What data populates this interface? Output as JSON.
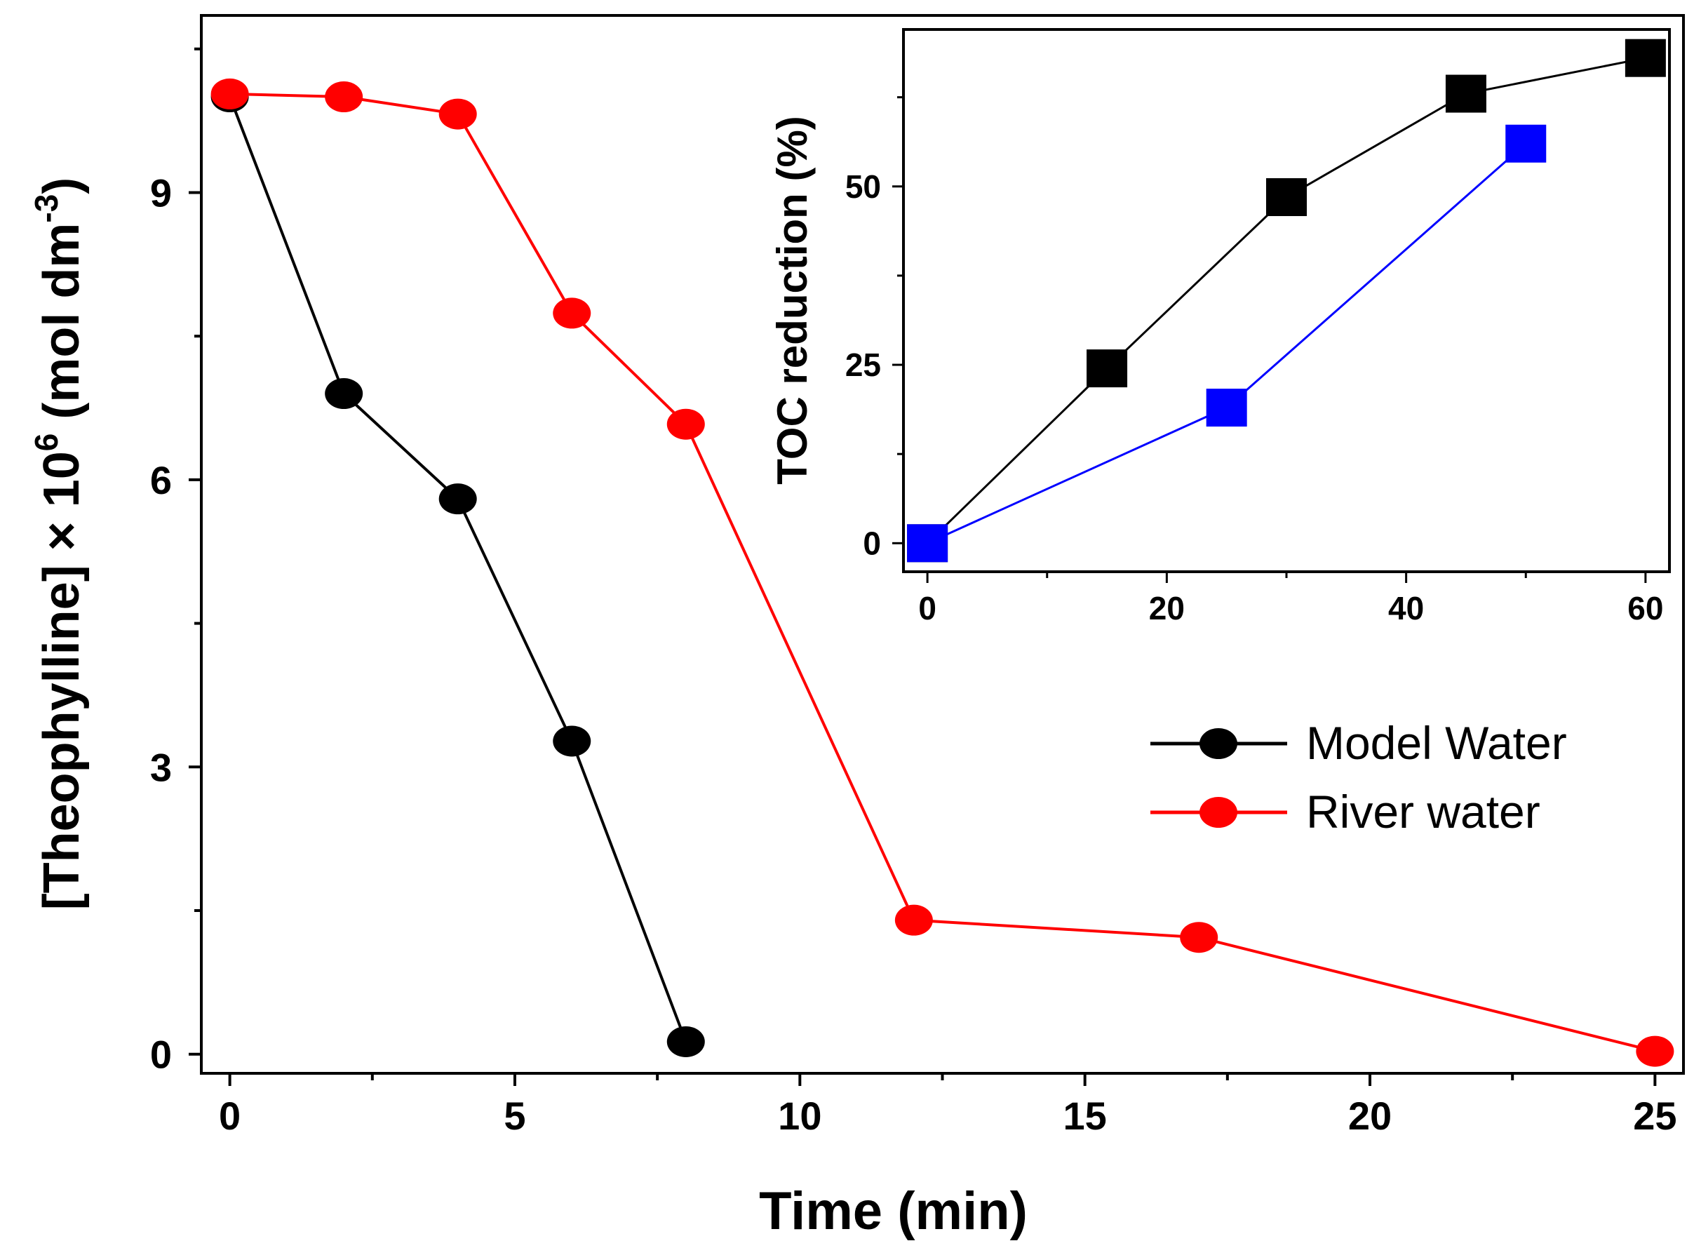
{
  "chart_data": [
    {
      "type": "line",
      "xlabel": "Time (min)",
      "ylabel": {
        "prefix": "[Theophylline] × 10",
        "superscript": "6",
        "unit_start": " (mol dm",
        "unit_superscript": "-3",
        "unit_end": ")"
      },
      "xlim": [
        -0.5,
        25.5
      ],
      "ylim": [
        -0.2,
        10.85
      ],
      "xticks": [
        0,
        5,
        10,
        15,
        20,
        25
      ],
      "yticks": [
        0,
        3,
        6,
        9
      ],
      "xtick_labels": [
        "0",
        "5",
        "10",
        "15",
        "20",
        "25"
      ],
      "ytick_labels": [
        "0",
        "3",
        "6",
        "9"
      ],
      "grid": false,
      "legend_position": "right-middle",
      "series": [
        {
          "name": "Model Water",
          "color": "#000000",
          "marker": "circle",
          "x": [
            0,
            2,
            4,
            6,
            8
          ],
          "y": [
            10.0,
            6.9,
            5.8,
            3.27,
            0.13
          ]
        },
        {
          "name": "River water",
          "color": "#ff0000",
          "marker": "circle",
          "x": [
            0,
            2,
            4,
            6,
            8,
            12,
            17,
            25
          ],
          "y": [
            10.03,
            10.0,
            9.82,
            7.74,
            6.58,
            1.4,
            1.22,
            0.03
          ]
        }
      ]
    },
    {
      "type": "line",
      "inset": true,
      "xlabel": "",
      "ylabel": "TOC reduction (%)",
      "xlim": [
        -2,
        62
      ],
      "ylim": [
        -4,
        72
      ],
      "xticks": [
        0,
        20,
        40,
        60
      ],
      "yticks": [
        0,
        25,
        50
      ],
      "xtick_labels": [
        "0",
        "20",
        "40",
        "60"
      ],
      "ytick_labels": [
        "0",
        "25",
        "50"
      ],
      "grid": false,
      "series": [
        {
          "color": "#000000",
          "marker": "square",
          "x": [
            0,
            15,
            30,
            45,
            60
          ],
          "y": [
            0,
            24.5,
            48.5,
            63,
            68
          ]
        },
        {
          "color": "#0000ff",
          "marker": "square",
          "x": [
            0,
            25,
            50
          ],
          "y": [
            0,
            19,
            56
          ]
        }
      ]
    }
  ]
}
